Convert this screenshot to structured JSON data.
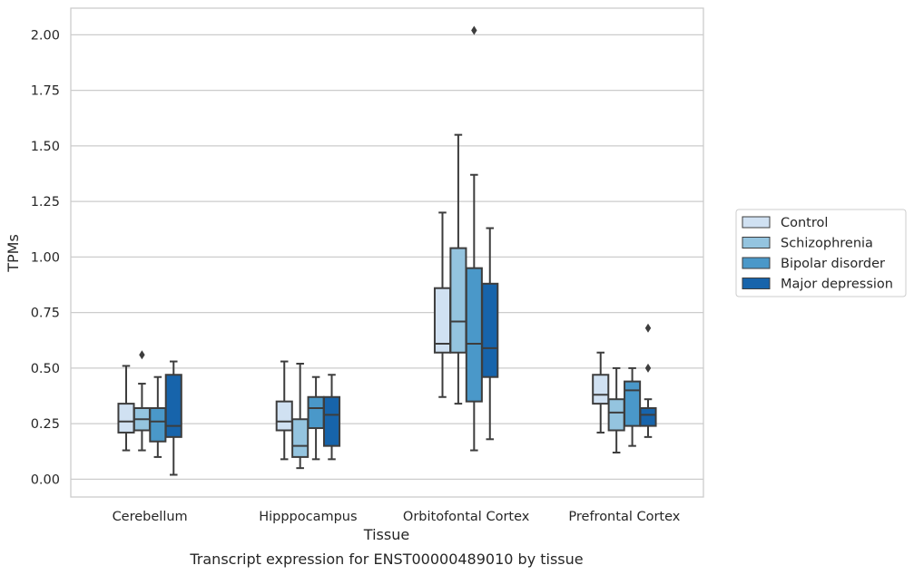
{
  "chart_data": {
    "type": "box",
    "title": "",
    "caption": "Transcript expression for ENST00000489010 by tissue",
    "xlabel": "Tissue",
    "ylabel": "TPMs",
    "ylim": [
      -0.08,
      2.12
    ],
    "yticks": [
      "0.00",
      "0.25",
      "0.50",
      "0.75",
      "1.00",
      "1.25",
      "1.50",
      "1.75",
      "2.00"
    ],
    "grid": "horizontal",
    "legend_position": "right",
    "categories": [
      "Cerebellum",
      "Hipppocampus",
      "Orbitofontal Cortex",
      "Prefrontal Cortex"
    ],
    "series": [
      {
        "name": "Control",
        "color": "#d0e1f2",
        "boxes": [
          {
            "whislo": 0.13,
            "q1": 0.21,
            "med": 0.26,
            "q3": 0.34,
            "whishi": 0.51,
            "fliers": []
          },
          {
            "whislo": 0.09,
            "q1": 0.22,
            "med": 0.26,
            "q3": 0.35,
            "whishi": 0.53,
            "fliers": []
          },
          {
            "whislo": 0.37,
            "q1": 0.57,
            "med": 0.61,
            "q3": 0.86,
            "whishi": 1.2,
            "fliers": []
          },
          {
            "whislo": 0.21,
            "q1": 0.34,
            "med": 0.38,
            "q3": 0.47,
            "whishi": 0.57,
            "fliers": []
          }
        ]
      },
      {
        "name": "Schizophrenia",
        "color": "#94c4df",
        "boxes": [
          {
            "whislo": 0.13,
            "q1": 0.22,
            "med": 0.27,
            "q3": 0.32,
            "whishi": 0.43,
            "fliers": [
              0.56
            ]
          },
          {
            "whislo": 0.05,
            "q1": 0.1,
            "med": 0.15,
            "q3": 0.27,
            "whishi": 0.52,
            "fliers": []
          },
          {
            "whislo": 0.34,
            "q1": 0.57,
            "med": 0.71,
            "q3": 1.04,
            "whishi": 1.55,
            "fliers": []
          },
          {
            "whislo": 0.12,
            "q1": 0.22,
            "med": 0.3,
            "q3": 0.36,
            "whishi": 0.5,
            "fliers": []
          }
        ]
      },
      {
        "name": "Bipolar disorder",
        "color": "#4a98c9",
        "boxes": [
          {
            "whislo": 0.1,
            "q1": 0.17,
            "med": 0.26,
            "q3": 0.32,
            "whishi": 0.46,
            "fliers": []
          },
          {
            "whislo": 0.09,
            "q1": 0.23,
            "med": 0.32,
            "q3": 0.37,
            "whishi": 0.46,
            "fliers": []
          },
          {
            "whislo": 0.13,
            "q1": 0.35,
            "med": 0.61,
            "q3": 0.95,
            "whishi": 1.37,
            "fliers": [
              2.02
            ]
          },
          {
            "whislo": 0.15,
            "q1": 0.24,
            "med": 0.4,
            "q3": 0.44,
            "whishi": 0.5,
            "fliers": []
          }
        ]
      },
      {
        "name": "Major depression",
        "color": "#1764ab",
        "boxes": [
          {
            "whislo": 0.02,
            "q1": 0.19,
            "med": 0.24,
            "q3": 0.47,
            "whishi": 0.53,
            "fliers": []
          },
          {
            "whislo": 0.09,
            "q1": 0.15,
            "med": 0.29,
            "q3": 0.37,
            "whishi": 0.47,
            "fliers": []
          },
          {
            "whislo": 0.18,
            "q1": 0.46,
            "med": 0.59,
            "q3": 0.88,
            "whishi": 1.13,
            "fliers": []
          },
          {
            "whislo": 0.19,
            "q1": 0.24,
            "med": 0.29,
            "q3": 0.32,
            "whishi": 0.36,
            "fliers": [
              0.5,
              0.68
            ]
          }
        ]
      }
    ]
  }
}
